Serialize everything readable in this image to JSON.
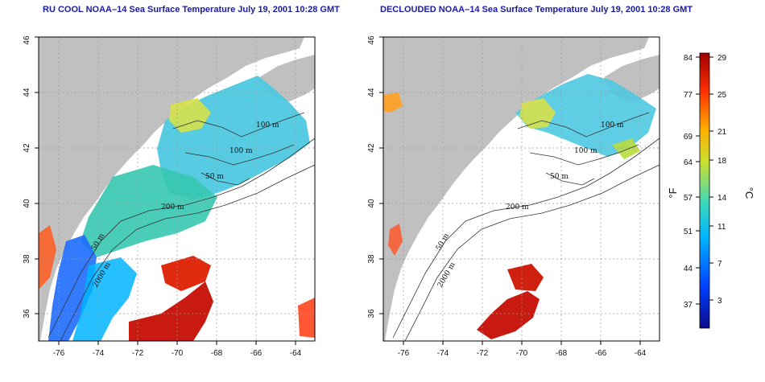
{
  "maps": [
    {
      "title": "RU COOL NOAA–14 Sea Surface Temperature July 19, 2001 10:28 GMT",
      "x_ticks": [
        "-76",
        "-74",
        "-72",
        "-70",
        "-68",
        "-66",
        "-64"
      ],
      "y_ticks": [
        "36",
        "38",
        "40",
        "42",
        "44",
        "46"
      ],
      "contour_labels": [
        "100 m",
        "100 m",
        "50 m",
        "200 m",
        "50 m",
        "2000 m"
      ]
    },
    {
      "title": "DECLOUDED NOAA–14 Sea Surface Temperature July 19, 2001 10:28 GMT",
      "x_ticks": [
        "-76",
        "-74",
        "-72",
        "-70",
        "-68",
        "-66",
        "-64"
      ],
      "y_ticks": [
        "36",
        "38",
        "40",
        "42",
        "44",
        "46"
      ],
      "contour_labels": [
        "100 m",
        "100 m",
        "50 m",
        "200 m",
        "50 m",
        "2000 m"
      ]
    }
  ],
  "map_extent": {
    "lon": [
      -77,
      -63
    ],
    "lat": [
      35,
      46
    ]
  },
  "colorbar": {
    "fahrenheit_ticks": [
      "84",
      "77",
      "69",
      "64",
      "57",
      "51",
      "44",
      "37"
    ],
    "celsius_ticks": [
      "29",
      "25",
      "21",
      "18",
      "14",
      "11",
      "7",
      "3"
    ],
    "fahrenheit_label": "°F",
    "celsius_label": "°C",
    "range_c": [
      0,
      29.5
    ],
    "colors": [
      "#0a0a8a",
      "#0040ff",
      "#00b4ff",
      "#38d8c0",
      "#c8e030",
      "#ffb000",
      "#ff3000",
      "#a00000"
    ]
  },
  "colors": {
    "land": "#c0c0c0",
    "cloud": "#ffffff",
    "grid": "#9a9a9a",
    "title": "#1a1aa8"
  }
}
